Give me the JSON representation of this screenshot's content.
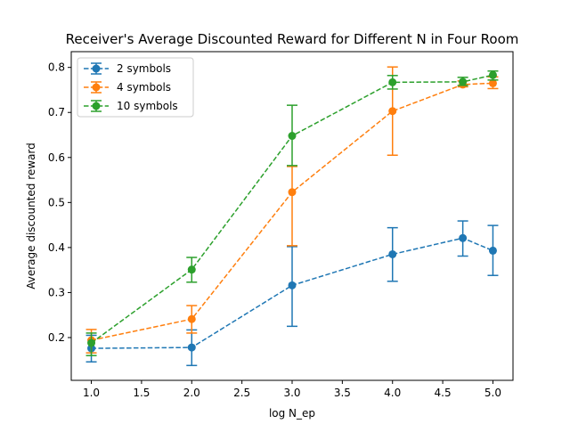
{
  "chart_data": {
    "type": "line",
    "title": "Receiver's Average Discounted Reward for Different N in Four Room",
    "xlabel": "log N_ep",
    "ylabel": "Average discounted reward",
    "xlim": [
      0.8,
      5.2
    ],
    "ylim": [
      0.105,
      0.835
    ],
    "xticks": [
      1.0,
      1.5,
      2.0,
      2.5,
      3.0,
      3.5,
      4.0,
      4.5,
      5.0
    ],
    "xtick_labels": [
      "1.0",
      "1.5",
      "2.0",
      "2.5",
      "3.0",
      "3.5",
      "4.0",
      "4.5",
      "5.0"
    ],
    "yticks": [
      0.2,
      0.3,
      0.4,
      0.5,
      0.6,
      0.7,
      0.8
    ],
    "ytick_labels": [
      "0.2",
      "0.3",
      "0.4",
      "0.5",
      "0.6",
      "0.7",
      "0.8"
    ],
    "grid": false,
    "legend_position": "upper-left",
    "line_style": "dashed",
    "error_bars": true,
    "series": [
      {
        "name": "2 symbols",
        "color": "#1f77b4",
        "x": [
          1.0,
          2.0,
          3.0,
          4.0,
          4.7,
          5.0
        ],
        "y": [
          0.176,
          0.178,
          0.316,
          0.385,
          0.421,
          0.393
        ],
        "err_low": [
          0.146,
          0.138,
          0.225,
          0.325,
          0.381,
          0.338
        ],
        "err_high": [
          0.205,
          0.217,
          0.402,
          0.444,
          0.459,
          0.449
        ]
      },
      {
        "name": "4 symbols",
        "color": "#ff7f0e",
        "x": [
          1.0,
          2.0,
          3.0,
          4.0,
          4.7,
          5.0
        ],
        "y": [
          0.194,
          0.241,
          0.523,
          0.703,
          0.762,
          0.765
        ],
        "err_low": [
          0.166,
          0.21,
          0.404,
          0.605,
          0.757,
          0.753
        ],
        "err_high": [
          0.218,
          0.271,
          0.58,
          0.801,
          0.77,
          0.779
        ]
      },
      {
        "name": "10 symbols",
        "color": "#2ca02c",
        "x": [
          1.0,
          2.0,
          3.0,
          4.0,
          4.7,
          5.0
        ],
        "y": [
          0.188,
          0.351,
          0.648,
          0.767,
          0.768,
          0.783
        ],
        "err_low": [
          0.16,
          0.323,
          0.582,
          0.752,
          0.76,
          0.772
        ],
        "err_high": [
          0.21,
          0.378,
          0.716,
          0.782,
          0.778,
          0.792
        ]
      }
    ]
  }
}
